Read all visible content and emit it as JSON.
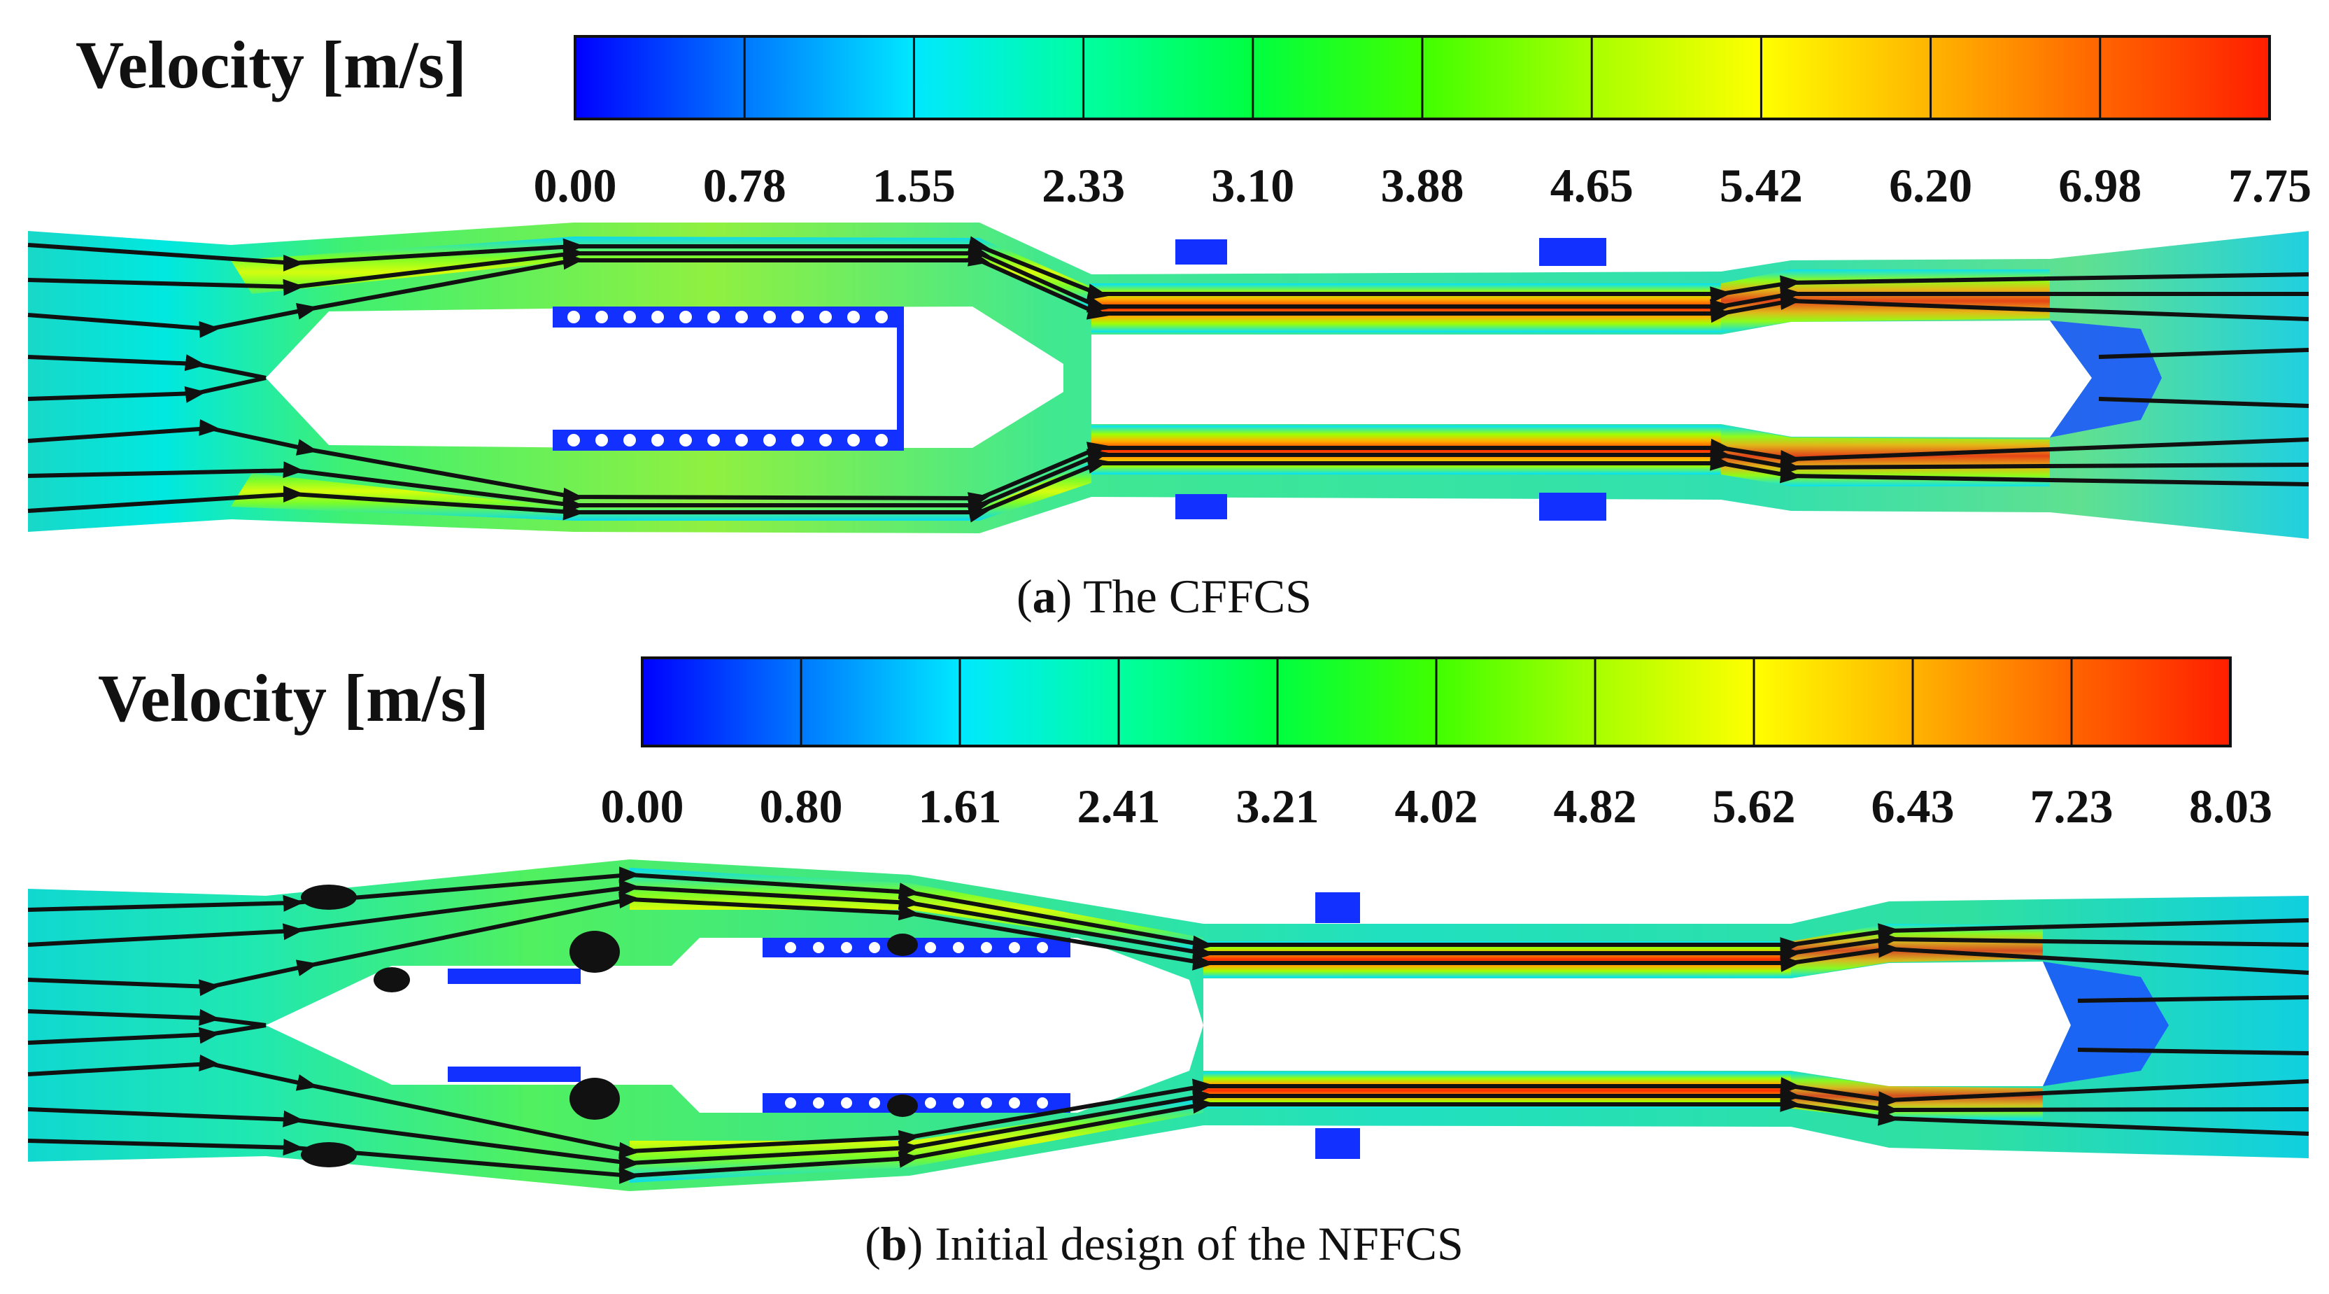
{
  "colormap": [
    "#0000ff",
    "#0078ff",
    "#00e8ff",
    "#00ffa0",
    "#00ff40",
    "#40ff00",
    "#a8ff00",
    "#ffff00",
    "#ffb400",
    "#ff6400",
    "#ff1e00"
  ],
  "panels": [
    {
      "id": "a",
      "legend_title": "Velocity [m/s]",
      "legend_ticks": [
        "0.00",
        "0.78",
        "1.55",
        "2.33",
        "3.10",
        "3.88",
        "4.65",
        "5.42",
        "6.20",
        "6.98",
        "7.75"
      ],
      "caption_letter": "a",
      "caption_text": "The CFFCS"
    },
    {
      "id": "b",
      "legend_title": "Velocity [m/s]",
      "legend_ticks": [
        "0.00",
        "0.80",
        "1.61",
        "2.41",
        "3.21",
        "4.02",
        "4.82",
        "5.62",
        "6.43",
        "7.23",
        "8.03"
      ],
      "caption_letter": "b",
      "caption_text": "Initial design of the NFFCS"
    }
  ]
}
